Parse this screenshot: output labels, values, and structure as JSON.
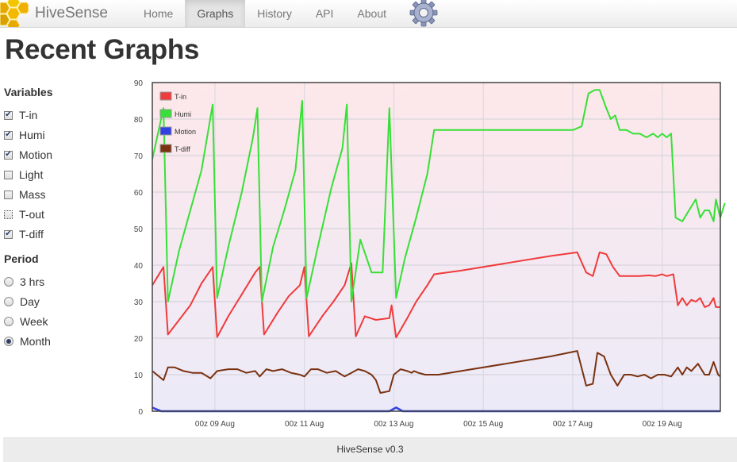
{
  "app": {
    "name": "HiveSense"
  },
  "nav": {
    "items": [
      {
        "label": "Home",
        "active": false
      },
      {
        "label": "Graphs",
        "active": true
      },
      {
        "label": "History",
        "active": false
      },
      {
        "label": "API",
        "active": false
      },
      {
        "label": "About",
        "active": false
      }
    ]
  },
  "page": {
    "title": "Recent Graphs"
  },
  "sidebar": {
    "variables_title": "Variables",
    "variables": [
      {
        "label": "T-in",
        "checked": true
      },
      {
        "label": "Humi",
        "checked": true
      },
      {
        "label": "Motion",
        "checked": true
      },
      {
        "label": "Light",
        "checked": false
      },
      {
        "label": "Mass",
        "checked": false
      },
      {
        "label": "T-out",
        "checked": false,
        "focused": true
      },
      {
        "label": "T-diff",
        "checked": true
      }
    ],
    "period_title": "Period",
    "periods": [
      {
        "label": "3 hrs",
        "selected": false
      },
      {
        "label": "Day",
        "selected": false
      },
      {
        "label": "Week",
        "selected": false
      },
      {
        "label": "Month",
        "selected": true
      }
    ]
  },
  "footer": {
    "text": "HiveSense v0.3"
  },
  "chart_data": {
    "type": "line",
    "y_ticks": [
      0,
      10,
      20,
      30,
      40,
      50,
      60,
      70,
      80,
      90
    ],
    "ylim": [
      0,
      90
    ],
    "xlim": [
      7.6,
      20.3
    ],
    "x_ticks": [
      {
        "value": 9,
        "label": "00z 09 Aug"
      },
      {
        "value": 11,
        "label": "00z 11 Aug"
      },
      {
        "value": 13,
        "label": "00z 13 Aug"
      },
      {
        "value": 15,
        "label": "00z 15 Aug"
      },
      {
        "value": 17,
        "label": "00z 17 Aug"
      },
      {
        "value": 19,
        "label": "00z 19 Aug"
      }
    ],
    "legend_position": "top-left",
    "grid": true,
    "background_gradient": [
      "#fde8ea",
      "#eceaf8"
    ],
    "series": [
      {
        "name": "T-in",
        "color": "#ef3b3b",
        "points": [
          [
            7.6,
            34.5
          ],
          [
            7.85,
            39.5
          ],
          [
            7.95,
            21
          ],
          [
            8.2,
            25
          ],
          [
            8.45,
            29
          ],
          [
            8.7,
            35
          ],
          [
            8.95,
            39.5
          ],
          [
            9.05,
            20.3
          ],
          [
            9.3,
            26
          ],
          [
            9.6,
            32
          ],
          [
            9.9,
            38
          ],
          [
            10.0,
            39.5
          ],
          [
            10.1,
            21
          ],
          [
            10.4,
            27
          ],
          [
            10.65,
            31.5
          ],
          [
            10.9,
            34.5
          ],
          [
            11.0,
            39.5
          ],
          [
            11.1,
            20.5
          ],
          [
            11.4,
            26
          ],
          [
            11.65,
            30
          ],
          [
            11.9,
            34.5
          ],
          [
            12.05,
            40.5
          ],
          [
            12.15,
            20.5
          ],
          [
            12.35,
            26
          ],
          [
            12.6,
            25
          ],
          [
            12.9,
            25.5
          ],
          [
            12.95,
            29
          ],
          [
            13.05,
            20.2
          ],
          [
            13.3,
            25.5
          ],
          [
            13.5,
            30
          ],
          [
            13.75,
            34.5
          ],
          [
            13.9,
            37.5
          ],
          [
            14.5,
            38.5
          ],
          [
            15.5,
            40.5
          ],
          [
            16.5,
            42.5
          ],
          [
            17.1,
            43.5
          ],
          [
            17.3,
            38
          ],
          [
            17.45,
            37
          ],
          [
            17.6,
            43.5
          ],
          [
            17.75,
            43
          ],
          [
            17.9,
            39.5
          ],
          [
            18.05,
            37
          ],
          [
            18.2,
            37
          ],
          [
            18.5,
            37
          ],
          [
            18.7,
            37.2
          ],
          [
            18.85,
            37
          ],
          [
            19.0,
            37.5
          ],
          [
            19.1,
            37
          ],
          [
            19.25,
            37.5
          ],
          [
            19.35,
            29
          ],
          [
            19.45,
            31
          ],
          [
            19.55,
            29
          ],
          [
            19.65,
            30.5
          ],
          [
            19.75,
            30
          ],
          [
            19.85,
            31
          ],
          [
            19.95,
            28.5
          ],
          [
            20.05,
            29
          ],
          [
            20.15,
            31
          ],
          [
            20.2,
            28.5
          ],
          [
            20.3,
            28.5
          ]
        ]
      },
      {
        "name": "Humi",
        "color": "#37e036",
        "points": [
          [
            7.6,
            69
          ],
          [
            7.85,
            83
          ],
          [
            7.95,
            30
          ],
          [
            8.2,
            44
          ],
          [
            8.45,
            55
          ],
          [
            8.7,
            66
          ],
          [
            8.95,
            84
          ],
          [
            9.05,
            31
          ],
          [
            9.3,
            45
          ],
          [
            9.6,
            60
          ],
          [
            9.85,
            75
          ],
          [
            9.95,
            83
          ],
          [
            10.05,
            30
          ],
          [
            10.3,
            45
          ],
          [
            10.55,
            55
          ],
          [
            10.8,
            66
          ],
          [
            10.95,
            85
          ],
          [
            11.05,
            31
          ],
          [
            11.3,
            45
          ],
          [
            11.6,
            61
          ],
          [
            11.85,
            72
          ],
          [
            11.95,
            84
          ],
          [
            12.05,
            30
          ],
          [
            12.25,
            47
          ],
          [
            12.5,
            38
          ],
          [
            12.75,
            38
          ],
          [
            12.9,
            83
          ],
          [
            13.05,
            31
          ],
          [
            13.25,
            42
          ],
          [
            13.5,
            53
          ],
          [
            13.75,
            65
          ],
          [
            13.9,
            77
          ],
          [
            14.5,
            77
          ],
          [
            15.5,
            77
          ],
          [
            16.5,
            77
          ],
          [
            17.0,
            77
          ],
          [
            17.2,
            78
          ],
          [
            17.35,
            87
          ],
          [
            17.5,
            88
          ],
          [
            17.6,
            88
          ],
          [
            17.75,
            83
          ],
          [
            17.85,
            80
          ],
          [
            17.95,
            81
          ],
          [
            18.05,
            77
          ],
          [
            18.2,
            77
          ],
          [
            18.35,
            76
          ],
          [
            18.5,
            76
          ],
          [
            18.65,
            75
          ],
          [
            18.8,
            76
          ],
          [
            18.9,
            75
          ],
          [
            19.0,
            76
          ],
          [
            19.1,
            75
          ],
          [
            19.2,
            76
          ],
          [
            19.3,
            53
          ],
          [
            19.45,
            52
          ],
          [
            19.6,
            55
          ],
          [
            19.75,
            58
          ],
          [
            19.85,
            53
          ],
          [
            19.95,
            55
          ],
          [
            20.05,
            55
          ],
          [
            20.15,
            52
          ],
          [
            20.2,
            58
          ],
          [
            20.3,
            53
          ],
          [
            20.4,
            57
          ]
        ]
      },
      {
        "name": "Motion",
        "color": "#3242e0",
        "points": [
          [
            7.6,
            1
          ],
          [
            7.8,
            0
          ],
          [
            9,
            0
          ],
          [
            11,
            0
          ],
          [
            12.9,
            0
          ],
          [
            13.05,
            1
          ],
          [
            13.2,
            0
          ],
          [
            15,
            0
          ],
          [
            17,
            0
          ],
          [
            19,
            0
          ],
          [
            20.3,
            0
          ]
        ]
      },
      {
        "name": "T-diff",
        "color": "#7a3210",
        "points": [
          [
            7.6,
            11
          ],
          [
            7.85,
            8.5
          ],
          [
            7.95,
            12
          ],
          [
            8.1,
            12
          ],
          [
            8.3,
            11
          ],
          [
            8.5,
            10.5
          ],
          [
            8.7,
            10.5
          ],
          [
            8.9,
            9
          ],
          [
            9.05,
            11
          ],
          [
            9.3,
            11.5
          ],
          [
            9.5,
            11.5
          ],
          [
            9.7,
            10.5
          ],
          [
            9.9,
            11
          ],
          [
            10.0,
            9.5
          ],
          [
            10.15,
            11.5
          ],
          [
            10.3,
            11
          ],
          [
            10.5,
            11.5
          ],
          [
            10.7,
            10.5
          ],
          [
            10.9,
            10
          ],
          [
            11.0,
            9.5
          ],
          [
            11.15,
            11.5
          ],
          [
            11.3,
            11.5
          ],
          [
            11.5,
            10.5
          ],
          [
            11.7,
            11
          ],
          [
            11.9,
            9.5
          ],
          [
            12.05,
            10.5
          ],
          [
            12.2,
            11.5
          ],
          [
            12.35,
            11
          ],
          [
            12.5,
            10
          ],
          [
            12.6,
            8.5
          ],
          [
            12.7,
            5
          ],
          [
            12.9,
            5.5
          ],
          [
            13.0,
            10
          ],
          [
            13.15,
            11.5
          ],
          [
            13.3,
            11
          ],
          [
            13.4,
            10.5
          ],
          [
            13.45,
            11
          ],
          [
            13.55,
            10.5
          ],
          [
            13.7,
            10
          ],
          [
            13.85,
            10
          ],
          [
            14.0,
            10
          ],
          [
            14.5,
            11
          ],
          [
            15.5,
            13
          ],
          [
            16.5,
            15
          ],
          [
            17.1,
            16.5
          ],
          [
            17.3,
            7
          ],
          [
            17.45,
            7.5
          ],
          [
            17.55,
            16
          ],
          [
            17.7,
            15
          ],
          [
            17.85,
            10
          ],
          [
            18.0,
            7
          ],
          [
            18.15,
            10
          ],
          [
            18.3,
            10
          ],
          [
            18.45,
            9.5
          ],
          [
            18.6,
            10
          ],
          [
            18.75,
            9
          ],
          [
            18.9,
            10
          ],
          [
            19.05,
            10
          ],
          [
            19.2,
            9.5
          ],
          [
            19.35,
            12
          ],
          [
            19.45,
            10
          ],
          [
            19.55,
            12
          ],
          [
            19.65,
            11
          ],
          [
            19.8,
            13
          ],
          [
            19.95,
            10
          ],
          [
            20.05,
            10
          ],
          [
            20.15,
            13.5
          ],
          [
            20.25,
            10
          ],
          [
            20.3,
            9.5
          ]
        ]
      }
    ]
  }
}
